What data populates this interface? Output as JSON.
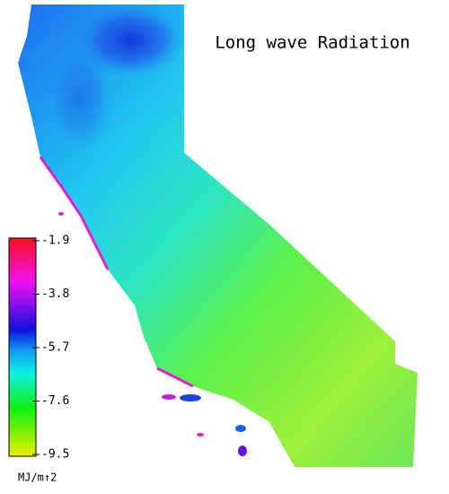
{
  "title": "Long wave Radiation",
  "colorbar": {
    "ticks": [
      -1.9,
      -3.8,
      -5.7,
      -7.6,
      -9.5
    ],
    "lim": [
      -1.9,
      -9.5
    ],
    "unit": "MJ/m↑2"
  }
}
